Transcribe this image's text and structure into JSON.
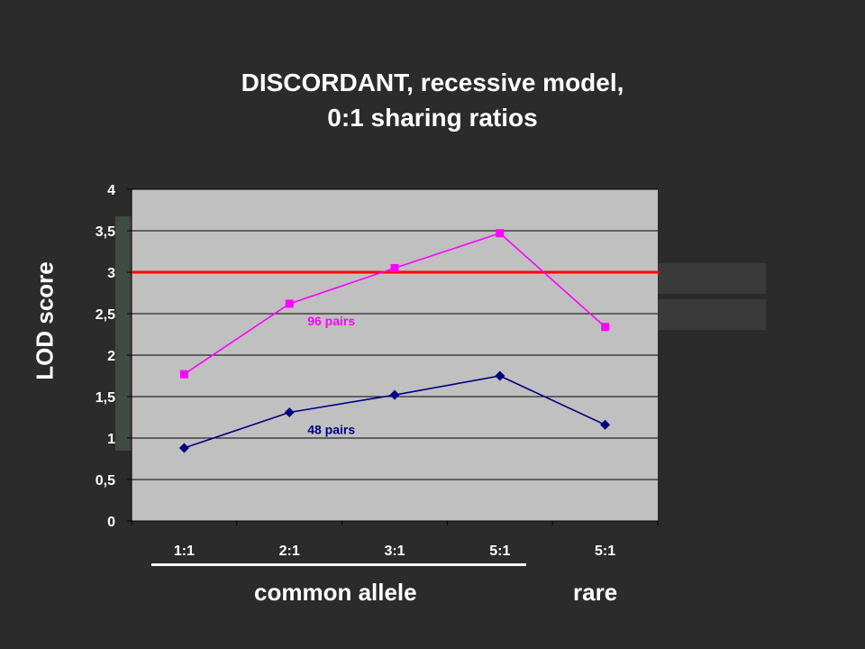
{
  "slide": {
    "title_line1": "DISCORDANT,  recessive model,",
    "title_line2": "0:1 sharing ratios",
    "ylabel": "LOD score",
    "group_common": "common allele",
    "group_rare": "rare"
  },
  "colors": {
    "background": "#2b2b2b",
    "plot_area": "#c0c0c0",
    "threshold": "#ff0000",
    "series_96": "#ff00ff",
    "series_48": "#000080"
  },
  "chart_data": {
    "type": "line",
    "categories": [
      "1:1",
      "2:1",
      "3:1",
      "5:1",
      "5:1"
    ],
    "ylim": [
      0,
      4
    ],
    "y_ticks": [
      "0",
      "0,5",
      "1",
      "1,5",
      "2",
      "2,5",
      "3",
      "3,5",
      "4"
    ],
    "y_tick_values": [
      0,
      0.5,
      1,
      1.5,
      2,
      2.5,
      3,
      3.5,
      4
    ],
    "threshold": 3,
    "grid": true,
    "series": [
      {
        "name": "96 pairs",
        "marker": "square",
        "color": "#ff00ff",
        "values": [
          1.77,
          2.62,
          3.05,
          3.47,
          2.34
        ]
      },
      {
        "name": "48 pairs",
        "marker": "diamond",
        "color": "#000080",
        "values": [
          0.88,
          1.31,
          1.52,
          1.75,
          1.16
        ]
      }
    ]
  }
}
